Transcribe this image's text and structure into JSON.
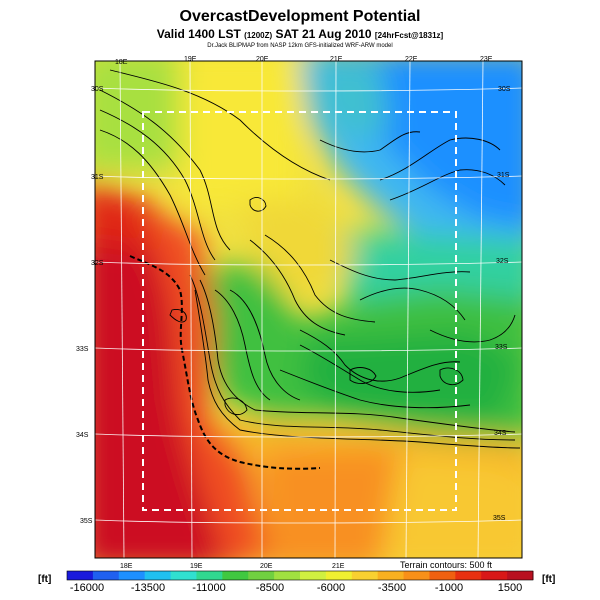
{
  "title": "OvercastDevelopment Potential",
  "subtitle_main": "Valid 1400 LST",
  "subtitle_small1": "(1200Z)",
  "subtitle_date": "SAT 21 Aug 2010",
  "subtitle_small2": "[24hrFcst@1831z]",
  "credit": "Dr.Jack BLIPMAP from NASP 12km GFS-initialized WRF-ARW model",
  "terrain_note": "Terrain contours: 500 ft",
  "unit_left": "[ft]",
  "unit_right": "[ft]",
  "colorbar": {
    "labels": [
      "-16000",
      "-13500",
      "-11000",
      "-8500",
      "-6000",
      "-3500",
      "-1000",
      "1500"
    ],
    "colors": [
      "#1a1adc",
      "#2060f0",
      "#1e90ff",
      "#20c0f0",
      "#30e0d0",
      "#30d890",
      "#40c840",
      "#70d040",
      "#a0e040",
      "#d0f040",
      "#f0f030",
      "#f8d030",
      "#f8b020",
      "#f89018",
      "#f06010",
      "#e83010",
      "#d81818",
      "#b81020"
    ]
  },
  "map": {
    "lon_top": [
      "18E",
      "19E",
      "20E",
      "21E",
      "22E",
      "23E"
    ],
    "lon_bottom": [
      "18E",
      "19E",
      "20E",
      "21E"
    ],
    "lat_left": [
      "30S",
      "31S",
      "32S",
      "33S",
      "34S",
      "35S"
    ],
    "lat_right": [
      "30S",
      "31S",
      "32S",
      "33S",
      "34S",
      "35S"
    ],
    "icons": [
      "contour-lines",
      "coastline",
      "domain-box"
    ]
  }
}
